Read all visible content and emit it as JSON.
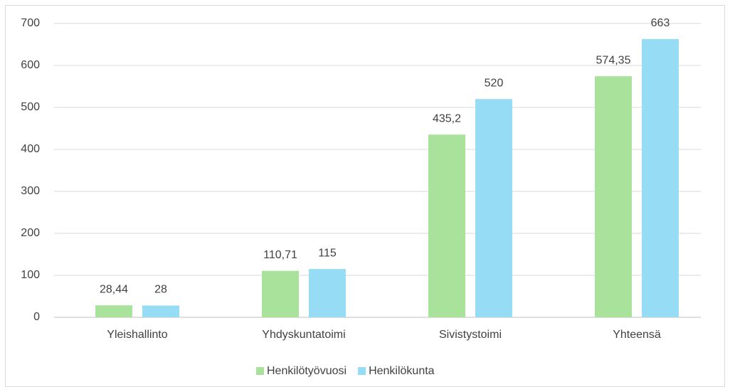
{
  "chart_data": {
    "type": "bar",
    "categories": [
      "Yleishallinto",
      "Yhdyskuntatoimi",
      "Sivistystoimi",
      "Yhteensä"
    ],
    "series": [
      {
        "name": "Henkilötyövuosi",
        "color": "#a9e29b",
        "values": [
          28.44,
          110.71,
          435.2,
          574.35
        ],
        "value_labels": [
          "28,44",
          "110,71",
          "435,2",
          "574,35"
        ]
      },
      {
        "name": "Henkilökunta",
        "color": "#96dcf5",
        "values": [
          28,
          115,
          520,
          663
        ]
      }
    ],
    "ylim": [
      0,
      700
    ],
    "yticks": [
      0,
      100,
      200,
      300,
      400,
      500,
      600,
      700
    ],
    "grid": true,
    "legend": "bottom"
  }
}
